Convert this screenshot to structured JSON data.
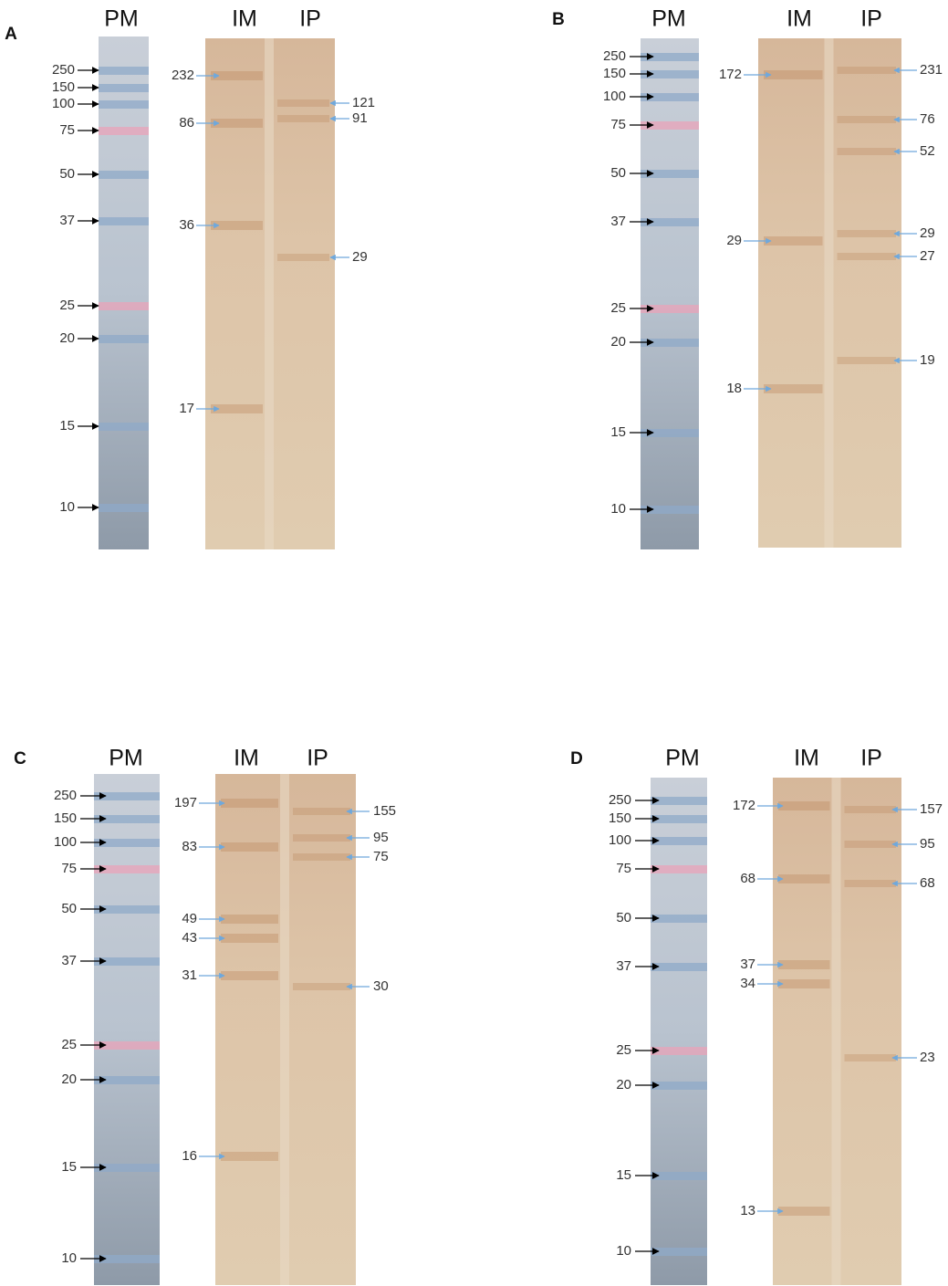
{
  "panels": [
    {
      "label": "A",
      "lanes": [
        "PM",
        "IM",
        "IP"
      ],
      "markers": [
        250,
        150,
        100,
        75,
        50,
        37,
        25,
        20,
        15,
        10
      ],
      "left_bands": [
        232,
        86,
        36,
        17
      ],
      "right_bands": [
        121,
        91,
        29
      ]
    },
    {
      "label": "B",
      "lanes": [
        "PM",
        "IM",
        "IP"
      ],
      "markers": [
        250,
        150,
        100,
        75,
        50,
        37,
        25,
        20,
        15,
        10
      ],
      "left_bands": [
        172,
        29,
        18
      ],
      "right_bands": [
        231,
        76,
        52,
        29,
        27,
        19
      ]
    },
    {
      "label": "C",
      "lanes": [
        "PM",
        "IM",
        "IP"
      ],
      "markers": [
        250,
        150,
        100,
        75,
        50,
        37,
        25,
        20,
        15,
        10
      ],
      "left_bands": [
        197,
        83,
        49,
        43,
        31,
        16
      ],
      "right_bands": [
        155,
        95,
        75,
        30
      ]
    },
    {
      "label": "D",
      "lanes": [
        "PM",
        "IM",
        "IP"
      ],
      "markers": [
        250,
        150,
        100,
        75,
        50,
        37,
        25,
        20,
        15,
        10
      ],
      "left_bands": [
        172,
        68,
        37,
        34,
        13
      ],
      "right_bands": [
        157,
        95,
        68,
        23
      ]
    }
  ]
}
